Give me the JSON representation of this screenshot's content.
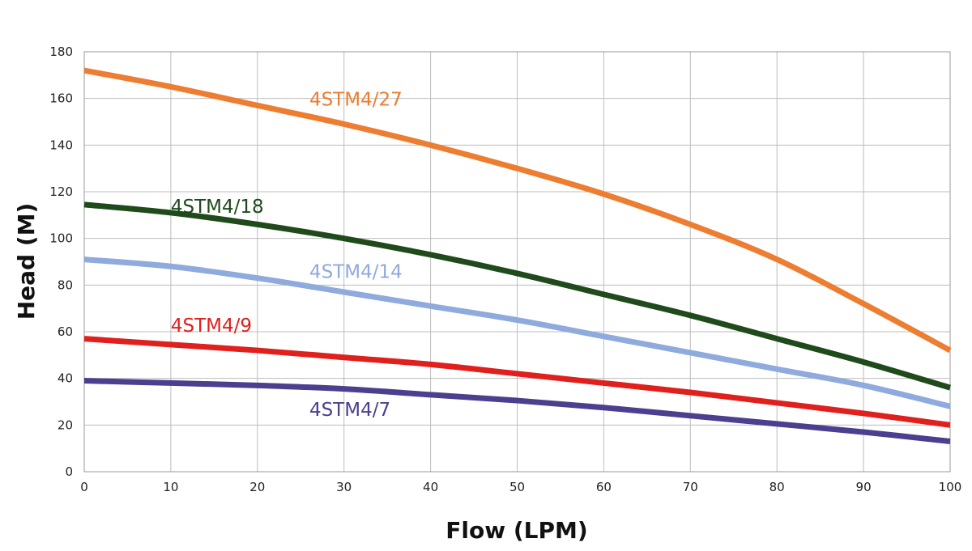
{
  "chart_data": {
    "type": "line",
    "title": "",
    "xlabel": "Flow (LPM)",
    "ylabel": "Head (M)",
    "xlim": [
      0,
      100
    ],
    "ylim": [
      0,
      180
    ],
    "grid": true,
    "x": [
      0,
      10,
      20,
      30,
      40,
      50,
      60,
      70,
      80,
      90,
      100
    ],
    "xticks": [
      "0",
      "10",
      "20",
      "30",
      "40",
      "50",
      "60",
      "70",
      "80",
      "90",
      "100"
    ],
    "yticks": [
      "0",
      "20",
      "40",
      "60",
      "80",
      "100",
      "120",
      "140",
      "160",
      "180"
    ],
    "series": [
      {
        "name": "4STM4/27",
        "color": "#ED7D31",
        "values": [
          172,
          165,
          157,
          149,
          140,
          130,
          119,
          106,
          91,
          72,
          52
        ]
      },
      {
        "name": "4STM4/18",
        "color": "#1F4A1C",
        "values": [
          114.5,
          111,
          106,
          100,
          93,
          85,
          76,
          67,
          57,
          47,
          36
        ]
      },
      {
        "name": "4STM4/14",
        "color": "#8FAADC",
        "values": [
          91,
          88,
          83,
          77,
          71,
          65,
          58,
          51,
          44,
          37,
          28
        ]
      },
      {
        "name": "4STM4/9",
        "color": "#E0201C",
        "values": [
          57,
          54.5,
          52,
          49,
          46,
          42,
          38,
          34,
          29.5,
          25,
          20
        ]
      },
      {
        "name": "4STM4/7",
        "color": "#4B3F8F",
        "values": [
          39,
          38,
          37,
          35.5,
          33,
          30.5,
          27.5,
          24,
          20.5,
          17,
          13
        ]
      }
    ]
  }
}
